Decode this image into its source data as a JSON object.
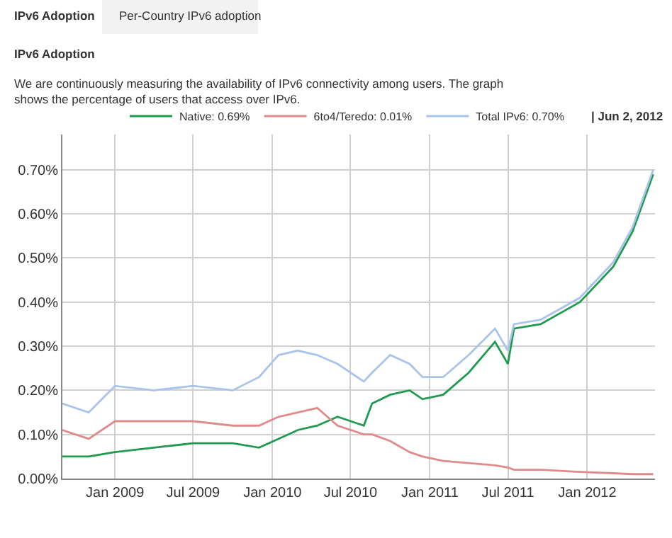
{
  "chart_data": {
    "type": "line",
    "title": "IPv6 Adoption",
    "subtitle": "We are continuously measuring the availability of IPv6 connectivity among users. The graph shows the percentage of users that access over IPv6.",
    "annotations": [
      "IPv6 Adoption",
      "Per-Country IPv6 adoption",
      "| Jun 2, 2012"
    ],
    "x": [
      "2008-09-01",
      "2008-11-01",
      "2009-01-01",
      "2009-04-01",
      "2009-07-01",
      "2009-10-01",
      "2009-12-01",
      "2010-01-15",
      "2010-03-01",
      "2010-04-15",
      "2010-06-01",
      "2010-08-01",
      "2010-08-20",
      "2010-10-01",
      "2010-11-15",
      "2010-12-15",
      "2011-02-01",
      "2011-04-01",
      "2011-06-01",
      "2011-07-01",
      "2011-07-15",
      "2011-09-15",
      "2011-12-15",
      "2012-03-01",
      "2012-04-15",
      "2012-06-02"
    ],
    "series": [
      {
        "name": "Native: 0.69%",
        "color": "#1f9a4e",
        "values": [
          0.05,
          0.05,
          0.06,
          0.07,
          0.08,
          0.08,
          0.07,
          0.09,
          0.11,
          0.12,
          0.14,
          0.12,
          0.17,
          0.19,
          0.2,
          0.18,
          0.19,
          0.24,
          0.31,
          0.26,
          0.34,
          0.35,
          0.4,
          0.48,
          0.56,
          0.69
        ]
      },
      {
        "name": "6to4/Teredo: 0.01%",
        "color": "#e08a8a",
        "values": [
          0.11,
          0.09,
          0.13,
          0.13,
          0.13,
          0.12,
          0.12,
          0.14,
          0.15,
          0.16,
          0.12,
          0.1,
          0.1,
          0.085,
          0.06,
          0.05,
          0.04,
          0.035,
          0.03,
          0.025,
          0.02,
          0.02,
          0.015,
          0.012,
          0.01,
          0.01
        ]
      },
      {
        "name": "Total IPv6: 0.70%",
        "color": "#a9c4ea",
        "values": [
          0.17,
          0.15,
          0.21,
          0.2,
          0.21,
          0.2,
          0.23,
          0.28,
          0.29,
          0.28,
          0.26,
          0.22,
          0.24,
          0.28,
          0.26,
          0.23,
          0.23,
          0.28,
          0.34,
          0.29,
          0.35,
          0.36,
          0.41,
          0.49,
          0.57,
          0.7
        ]
      }
    ],
    "xlim": [
      "2008-09-01",
      "2012-06-06"
    ],
    "xticks": [
      {
        "value": "2009-01-01",
        "label": "Jan 2009"
      },
      {
        "value": "2009-07-01",
        "label": "Jul 2009"
      },
      {
        "value": "2010-01-01",
        "label": "Jan 2010"
      },
      {
        "value": "2010-07-01",
        "label": "Jul 2010"
      },
      {
        "value": "2011-01-01",
        "label": "Jan 2011"
      },
      {
        "value": "2011-07-01",
        "label": "Jul 2011"
      },
      {
        "value": "2012-01-01",
        "label": "Jan 2012"
      }
    ],
    "ylim": [
      0,
      0.78
    ],
    "yticks": [
      {
        "value": 0,
        "label": "0.00%"
      },
      {
        "value": 0.1,
        "label": "0.10%"
      },
      {
        "value": 0.2,
        "label": "0.20%"
      },
      {
        "value": 0.3,
        "label": "0.30%"
      },
      {
        "value": 0.4,
        "label": "0.40%"
      },
      {
        "value": 0.5,
        "label": "0.50%"
      },
      {
        "value": 0.6,
        "label": "0.60%"
      },
      {
        "value": 0.7,
        "label": "0.70%"
      }
    ],
    "grid": true,
    "legend": "top right",
    "line_style": "solid"
  }
}
